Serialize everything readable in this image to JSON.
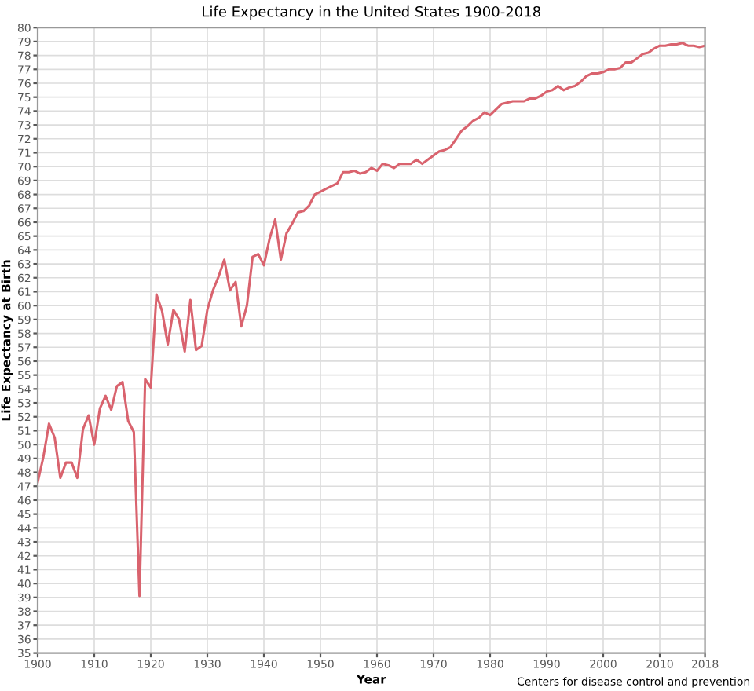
{
  "chart_data": {
    "type": "line",
    "title": "Life Expectancy in the United States 1900-2018",
    "xlabel": "Year",
    "ylabel": "Life Expectancy at Birth",
    "annotations": [
      "Centers for disease control and prevention"
    ],
    "x": [
      1900,
      1901,
      1902,
      1903,
      1904,
      1905,
      1906,
      1907,
      1908,
      1909,
      1910,
      1911,
      1912,
      1913,
      1914,
      1915,
      1916,
      1917,
      1918,
      1919,
      1920,
      1921,
      1922,
      1923,
      1924,
      1925,
      1926,
      1927,
      1928,
      1929,
      1930,
      1931,
      1932,
      1933,
      1934,
      1935,
      1936,
      1937,
      1938,
      1939,
      1940,
      1941,
      1942,
      1943,
      1944,
      1945,
      1946,
      1947,
      1948,
      1949,
      1950,
      1951,
      1952,
      1953,
      1954,
      1955,
      1956,
      1957,
      1958,
      1959,
      1960,
      1961,
      1962,
      1963,
      1964,
      1965,
      1966,
      1967,
      1968,
      1969,
      1970,
      1971,
      1972,
      1973,
      1974,
      1975,
      1976,
      1977,
      1978,
      1979,
      1980,
      1981,
      1982,
      1983,
      1984,
      1985,
      1986,
      1987,
      1988,
      1989,
      1990,
      1991,
      1992,
      1993,
      1994,
      1995,
      1996,
      1997,
      1998,
      1999,
      2000,
      2001,
      2002,
      2003,
      2004,
      2005,
      2006,
      2007,
      2008,
      2009,
      2010,
      2011,
      2012,
      2013,
      2014,
      2015,
      2016,
      2017,
      2018
    ],
    "series": [
      {
        "color": "#d9636e",
        "values": [
          47.3,
          49.1,
          51.5,
          50.5,
          47.6,
          48.7,
          48.7,
          47.6,
          51.1,
          52.1,
          50.0,
          52.6,
          53.5,
          52.5,
          54.2,
          54.5,
          51.7,
          50.9,
          39.1,
          54.7,
          54.1,
          60.8,
          59.6,
          57.2,
          59.7,
          59.0,
          56.7,
          60.4,
          56.8,
          57.1,
          59.7,
          61.1,
          62.1,
          63.3,
          61.1,
          61.7,
          58.5,
          60.0,
          63.5,
          63.7,
          62.9,
          64.8,
          66.2,
          63.3,
          65.2,
          65.9,
          66.7,
          66.8,
          67.2,
          68.0,
          68.2,
          68.4,
          68.6,
          68.8,
          69.6,
          69.6,
          69.7,
          69.5,
          69.6,
          69.9,
          69.7,
          70.2,
          70.1,
          69.9,
          70.2,
          70.2,
          70.2,
          70.5,
          70.2,
          70.5,
          70.8,
          71.1,
          71.2,
          71.4,
          72.0,
          72.6,
          72.9,
          73.3,
          73.5,
          73.9,
          73.7,
          74.1,
          74.5,
          74.6,
          74.7,
          74.7,
          74.7,
          74.9,
          74.9,
          75.1,
          75.4,
          75.5,
          75.8,
          75.5,
          75.7,
          75.8,
          76.1,
          76.5,
          76.7,
          76.7,
          76.8,
          77.0,
          77.0,
          77.1,
          77.5,
          77.5,
          77.8,
          78.1,
          78.2,
          78.5,
          78.7,
          78.7,
          78.8,
          78.8,
          78.9,
          78.7,
          78.7,
          78.6,
          78.7
        ]
      }
    ],
    "xlim": [
      1900,
      2018
    ],
    "xticks": [
      1900,
      1910,
      1920,
      1930,
      1940,
      1950,
      1960,
      1970,
      1980,
      1990,
      2000,
      2010,
      2018
    ],
    "ylim": [
      35,
      80
    ],
    "yticks": [
      35,
      36,
      37,
      38,
      39,
      40,
      41,
      42,
      43,
      44,
      45,
      46,
      47,
      48,
      49,
      50,
      51,
      52,
      53,
      54,
      55,
      56,
      57,
      58,
      59,
      60,
      61,
      62,
      63,
      64,
      65,
      66,
      67,
      68,
      69,
      70,
      71,
      72,
      73,
      74,
      75,
      76,
      77,
      78,
      79,
      80
    ],
    "grid": true,
    "legend": false,
    "marker": "none",
    "line_style": "solid"
  }
}
